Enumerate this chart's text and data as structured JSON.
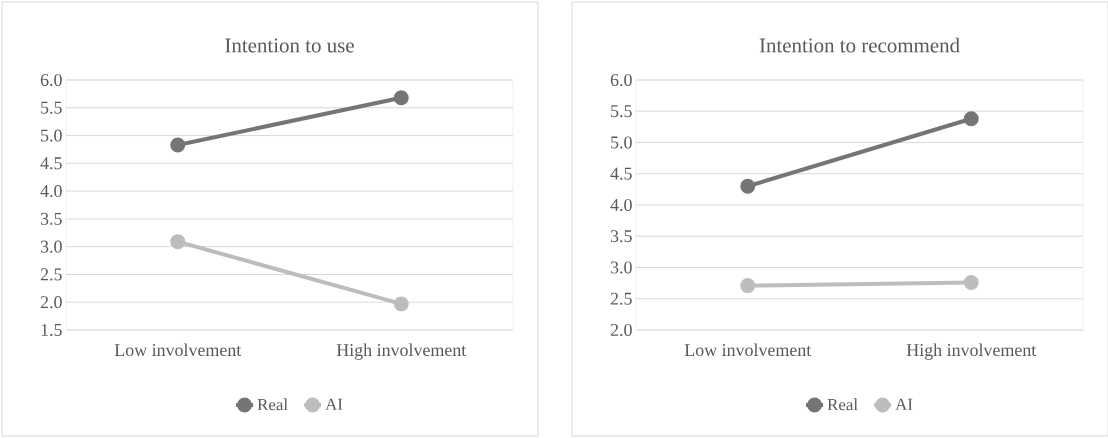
{
  "chart_data": [
    {
      "type": "line",
      "title": "Intention to use",
      "categories": [
        "Low involvement",
        "High involvement"
      ],
      "series": [
        {
          "name": "Real",
          "color": "#757575",
          "values": [
            4.83,
            5.68
          ]
        },
        {
          "name": "AI",
          "color": "#bdbdbd",
          "values": [
            3.09,
            1.97
          ]
        }
      ],
      "ylim": [
        1.5,
        6.0
      ],
      "yticks": [
        {
          "value": 1.5,
          "label": "1.5"
        },
        {
          "value": 2,
          "label": "2.0"
        },
        {
          "value": 2.5,
          "label": "2.5"
        },
        {
          "value": 3,
          "label": "3.0"
        },
        {
          "value": 3.5,
          "label": "3.5"
        },
        {
          "value": 4,
          "label": "4.0"
        },
        {
          "value": 4.5,
          "label": "4.5"
        },
        {
          "value": 5,
          "label": "5.0"
        },
        {
          "value": 5.5,
          "label": "5.5"
        },
        {
          "value": 6,
          "label": "6.0"
        }
      ],
      "grid": "y",
      "legend": "bottom",
      "marker": "circle",
      "line_style": "solid"
    },
    {
      "type": "line",
      "title": "Intention to recommend",
      "categories": [
        "Low involvement",
        "High involvement"
      ],
      "series": [
        {
          "name": "Real",
          "color": "#757575",
          "values": [
            4.3,
            5.38
          ]
        },
        {
          "name": "AI",
          "color": "#bdbdbd",
          "values": [
            2.71,
            2.76
          ]
        }
      ],
      "ylim": [
        2.0,
        6.0
      ],
      "yticks": [
        {
          "value": 2,
          "label": "2.0"
        },
        {
          "value": 2.5,
          "label": "2.5"
        },
        {
          "value": 3,
          "label": "3.0"
        },
        {
          "value": 3.5,
          "label": "3.5"
        },
        {
          "value": 4,
          "label": "4.0"
        },
        {
          "value": 4.5,
          "label": "4.5"
        },
        {
          "value": 5,
          "label": "5.0"
        },
        {
          "value": 5.5,
          "label": "5.5"
        },
        {
          "value": 6,
          "label": "6.0"
        }
      ],
      "grid": "y",
      "legend": "bottom",
      "marker": "circle",
      "line_style": "solid"
    }
  ]
}
